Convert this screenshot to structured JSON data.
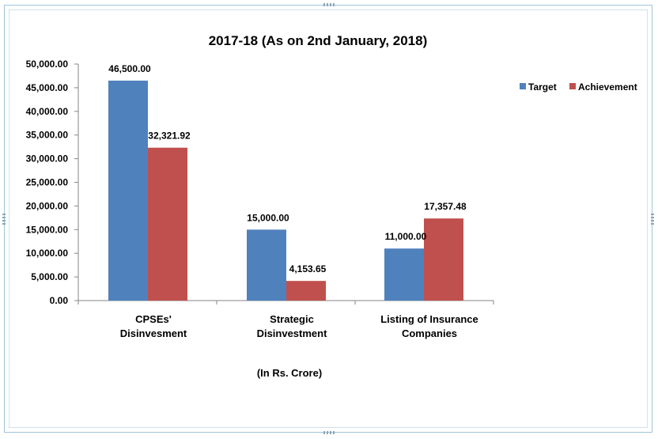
{
  "chart_data": {
    "type": "bar",
    "title": "2017-18 (As on 2nd January, 2018)",
    "xlabel": "(In Rs. Crore)",
    "ylabel": "",
    "ylim": [
      0,
      50000
    ],
    "yticks": [
      "0.00",
      "5,000.00",
      "10,000.00",
      "15,000.00",
      "20,000.00",
      "25,000.00",
      "30,000.00",
      "35,000.00",
      "40,000.00",
      "45,000.00",
      "50,000.00"
    ],
    "ytick_values": [
      0,
      5000,
      10000,
      15000,
      20000,
      25000,
      30000,
      35000,
      40000,
      45000,
      50000
    ],
    "categories": [
      [
        "CPSEs'",
        "Disinvesment"
      ],
      [
        "Strategic",
        "Disinvestment"
      ],
      [
        "Listing of Insurance",
        "Companies"
      ]
    ],
    "series": [
      {
        "name": "Target",
        "color": "#4f81bd",
        "values": [
          46500,
          15000,
          11000
        ],
        "labels": [
          "46,500.00",
          "15,000.00",
          "11,000.00"
        ]
      },
      {
        "name": "Achievement",
        "color": "#c0504d",
        "values": [
          32321.92,
          4153.65,
          17357.48
        ],
        "labels": [
          "32,321.92",
          "4,153.65",
          "17,357.48"
        ]
      }
    ],
    "legend_position": "top-right",
    "grid": false
  }
}
